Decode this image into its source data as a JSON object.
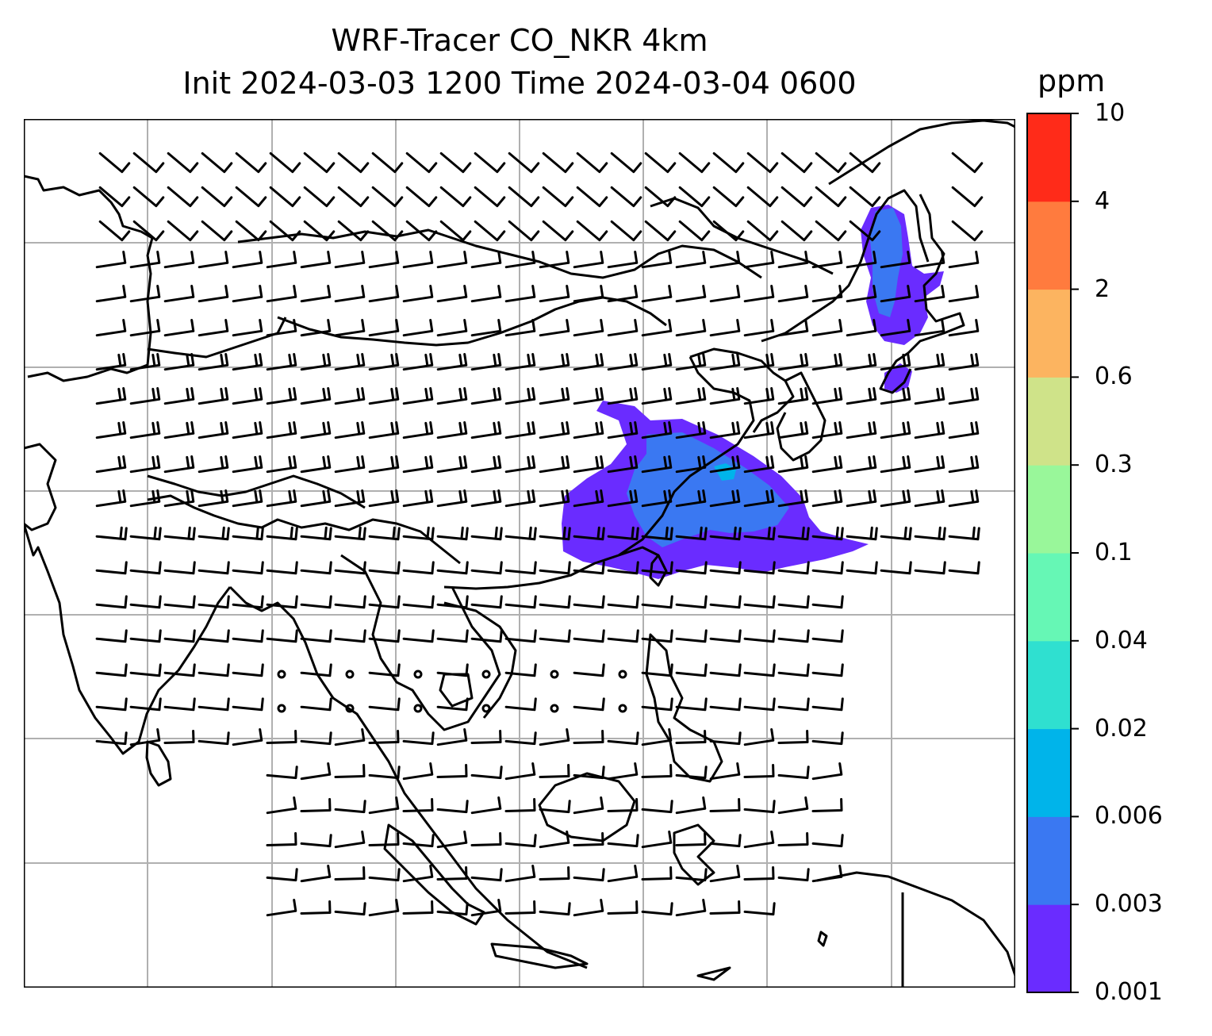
{
  "title": {
    "line1": "WRF-Tracer CO_NKR 4km",
    "line2": "Init 2024-03-03 1200 Time 2024-03-04 0600"
  },
  "colorbar": {
    "unit": "ppm",
    "levels": [
      "0.001",
      "0.003",
      "0.006",
      "0.02",
      "0.04",
      "0.1",
      "0.3",
      "0.6",
      "2",
      "4",
      "10"
    ],
    "colors": [
      "#6a2cff",
      "#3a78f2",
      "#00b4ea",
      "#2fe0d0",
      "#66f7b5",
      "#99f79a",
      "#cfe389",
      "#fcb460",
      "#ff7b3e",
      "#ff2b19"
    ]
  },
  "map": {
    "features": [
      "coastlines",
      "country-borders",
      "gridlines",
      "wind-barbs",
      "tracer-plume"
    ],
    "colors": {
      "coast": "#000000",
      "grid": "#b0b0b0",
      "plume_low": "#6a2cff",
      "plume_mid": "#3a78f2",
      "plume_high": "#00b4ea"
    }
  }
}
